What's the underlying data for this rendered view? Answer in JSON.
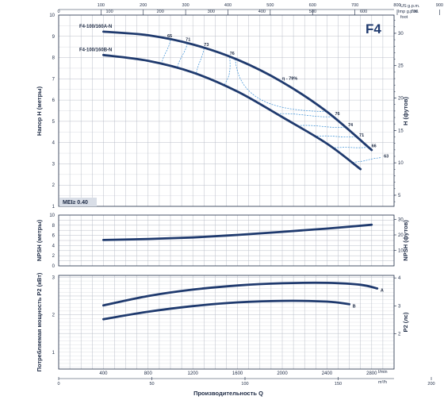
{
  "chart_data": [
    {
      "type": "line",
      "panel": "head",
      "model": "F4",
      "ylabel": "Напор H (метры)",
      "ylabel_right": "H (футов)",
      "ylim": [
        1,
        10
      ],
      "yticks": [
        1,
        2,
        3,
        4,
        5,
        6,
        7,
        8,
        9,
        10
      ],
      "yticks_right": [
        5,
        10,
        15,
        20,
        25,
        30
      ],
      "top_axis_usgpm": {
        "unit": "US g.p.m.",
        "ticks": [
          100,
          200,
          300,
          400,
          500,
          600,
          700,
          800,
          900
        ]
      },
      "top_axis_impgpm": {
        "unit": "Imp g.p.m.",
        "ticks": [
          0,
          100,
          200,
          300,
          400,
          500,
          600,
          700
        ]
      },
      "right_top_unit": "foot",
      "mei_label": "MEI≥ 0.40",
      "series": [
        {
          "name": "F4-100/160A-N",
          "x": [
            400,
            800,
            1200,
            1600,
            2000,
            2400,
            2800
          ],
          "y": [
            9.22,
            9.05,
            8.62,
            7.9,
            6.85,
            5.45,
            3.65
          ]
        },
        {
          "name": "F4-100/160B-N",
          "x": [
            400,
            800,
            1200,
            1600,
            2000,
            2400,
            2700
          ],
          "y": [
            8.12,
            7.85,
            7.3,
            6.4,
            5.2,
            3.95,
            2.75
          ]
        }
      ],
      "efficiency_labels": [
        "65",
        "71",
        "73",
        "76",
        "η - 79%",
        "76",
        "74",
        "71",
        "66",
        "63"
      ]
    },
    {
      "type": "line",
      "panel": "npsh",
      "ylabel": "NPSH (метры)",
      "ylabel_right": "NPSH (футов)",
      "ylim": [
        0,
        10
      ],
      "yticks": [
        0,
        2,
        4,
        6,
        8,
        10
      ],
      "yticks_right": [
        10,
        20,
        30
      ],
      "series": [
        {
          "name": "",
          "x": [
            400,
            800,
            1200,
            1600,
            2000,
            2400,
            2800
          ],
          "y": [
            5.1,
            5.3,
            5.6,
            6.1,
            6.7,
            7.35,
            8.1
          ]
        }
      ]
    },
    {
      "type": "line",
      "panel": "power",
      "ylabel": "Потребляемая мощность P2 (кВт)",
      "ylabel_right": "P2 (лс)",
      "ylim": [
        0.55,
        3.05
      ],
      "yticks": [
        1,
        2,
        3
      ],
      "yticks_right": [
        2,
        3,
        4
      ],
      "series": [
        {
          "name": "A",
          "x": [
            400,
            800,
            1200,
            1600,
            2000,
            2400,
            2700,
            2850
          ],
          "y": [
            2.25,
            2.5,
            2.67,
            2.78,
            2.84,
            2.85,
            2.8,
            2.7
          ]
        },
        {
          "name": "B",
          "x": [
            400,
            800,
            1200,
            1600,
            2000,
            2400,
            2600
          ],
          "y": [
            1.88,
            2.08,
            2.23,
            2.33,
            2.37,
            2.35,
            2.28
          ]
        }
      ]
    }
  ],
  "bottom_axis": {
    "lmin_unit": "l/min",
    "lmin_ticks": [
      400,
      800,
      1200,
      1600,
      2000,
      2400,
      2800
    ],
    "m3h_unit": "m³/h",
    "m3h_ticks": [
      0,
      50,
      100,
      150,
      200
    ],
    "xlabel": "Производительность Q",
    "xlim": [
      0,
      3000
    ]
  },
  "colors": {
    "curve": "#1f3a6e",
    "efficiency": "#3a8fd6",
    "grid": "#b9bec8",
    "mei_bg": "#d9dee7"
  }
}
